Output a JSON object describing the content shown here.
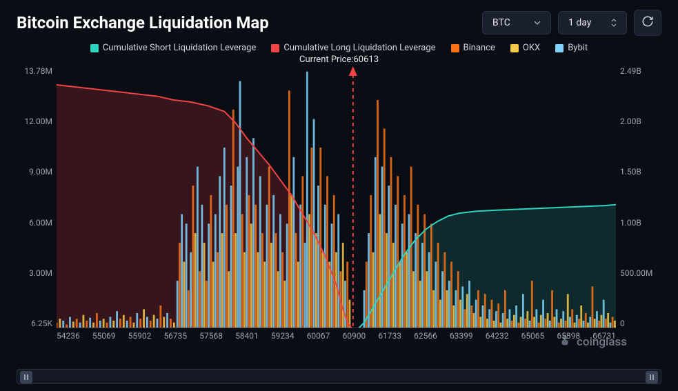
{
  "header": {
    "title": "Bitcoin Exchange Liquidation Map",
    "asset_selector": {
      "value": "BTC"
    },
    "range_selector": {
      "value": "1 day"
    }
  },
  "legend": {
    "items": [
      {
        "label": "Cumulative Short Liquidation Leverage",
        "color": "#2dd4bf"
      },
      {
        "label": "Cumulative Long Liquidation Leverage",
        "color": "#ef4444"
      },
      {
        "label": "Binance",
        "color": "#f97316"
      },
      {
        "label": "OKX",
        "color": "#f7c948"
      },
      {
        "label": "Bybit",
        "color": "#7dd3fc"
      }
    ]
  },
  "subtitle_prefix": "Current Price:",
  "current_price": "60613",
  "watermark": "coinglass",
  "chart": {
    "type": "combo-bar-line",
    "background_color": "#0a0d14",
    "grid_color": "#1f2533",
    "current_price_line_color": "#ef4444",
    "arrow_color": "#ef4444",
    "y_left": {
      "label_fontsize": 12,
      "ticks": [
        "13.78M",
        "12.00M",
        "9.00M",
        "6.00M",
        "3.00M",
        "6.25K"
      ]
    },
    "y_right": {
      "label_fontsize": 12,
      "ticks": [
        "2.49B",
        "2.00B",
        "1.50B",
        "1.00B",
        "500.00M",
        "0"
      ]
    },
    "x": {
      "label_fontsize": 12,
      "ticks": [
        "54236",
        "55069",
        "55902",
        "56735",
        "57568",
        "58401",
        "59234",
        "60067",
        "60900",
        "61733",
        "62566",
        "63399",
        "64232",
        "65065",
        "65898",
        "66731"
      ]
    },
    "long_line": {
      "color": "#ef4444",
      "fill": "#5b1d22",
      "fill_opacity": 0.55,
      "points": [
        [
          0,
          12.8
        ],
        [
          3,
          12.7
        ],
        [
          6,
          12.6
        ],
        [
          9,
          12.5
        ],
        [
          12,
          12.4
        ],
        [
          15,
          12.3
        ],
        [
          18,
          12.2
        ],
        [
          21,
          12.0
        ],
        [
          24,
          11.9
        ],
        [
          27,
          11.7
        ],
        [
          30,
          11.4
        ],
        [
          32,
          10.8
        ],
        [
          34,
          10.0
        ],
        [
          36,
          9.3
        ],
        [
          38,
          8.6
        ],
        [
          40,
          7.8
        ],
        [
          42,
          7.0
        ],
        [
          44,
          6.0
        ],
        [
          46,
          5.0
        ],
        [
          48,
          3.8
        ],
        [
          50,
          2.3
        ],
        [
          51,
          1.2
        ],
        [
          52,
          0.3
        ],
        [
          52.8,
          0
        ]
      ]
    },
    "short_line": {
      "color": "#2dd4bf",
      "fill": "#134e4a",
      "fill_opacity": 0.45,
      "points": [
        [
          54,
          0
        ],
        [
          55,
          0.3
        ],
        [
          56,
          0.8
        ],
        [
          58,
          1.8
        ],
        [
          60,
          2.8
        ],
        [
          62,
          3.8
        ],
        [
          64,
          4.6
        ],
        [
          66,
          5.2
        ],
        [
          68,
          5.6
        ],
        [
          70,
          5.9
        ],
        [
          72,
          6.05
        ],
        [
          75,
          6.15
        ],
        [
          78,
          6.2
        ],
        [
          82,
          6.25
        ],
        [
          86,
          6.3
        ],
        [
          90,
          6.35
        ],
        [
          94,
          6.4
        ],
        [
          98,
          6.45
        ],
        [
          100,
          6.5
        ]
      ]
    },
    "current_price_x": 53,
    "bars": [
      [
        0,
        0.3,
        "o"
      ],
      [
        0.6,
        0.5,
        "y"
      ],
      [
        1.2,
        0.4,
        "c"
      ],
      [
        1.8,
        0.2,
        "o"
      ],
      [
        2.4,
        0.6,
        "c"
      ],
      [
        3,
        0.35,
        "y"
      ],
      [
        3.6,
        0.5,
        "o"
      ],
      [
        4.2,
        0.3,
        "c"
      ],
      [
        4.8,
        0.7,
        "y"
      ],
      [
        5.4,
        0.4,
        "o"
      ],
      [
        6,
        0.55,
        "c"
      ],
      [
        6.6,
        0.3,
        "y"
      ],
      [
        7.2,
        0.8,
        "o"
      ],
      [
        7.8,
        0.4,
        "c"
      ],
      [
        8.4,
        0.5,
        "y"
      ],
      [
        9,
        0.3,
        "o"
      ],
      [
        9.6,
        0.6,
        "c"
      ],
      [
        10.2,
        0.4,
        "y"
      ],
      [
        10.8,
        0.9,
        "c"
      ],
      [
        11.4,
        0.5,
        "o"
      ],
      [
        12,
        0.7,
        "y"
      ],
      [
        12.6,
        0.4,
        "c"
      ],
      [
        13.2,
        0.6,
        "o"
      ],
      [
        13.8,
        0.3,
        "y"
      ],
      [
        14.4,
        0.8,
        "c"
      ],
      [
        15,
        0.5,
        "o"
      ],
      [
        15.6,
        1.0,
        "y"
      ],
      [
        16.2,
        0.6,
        "c"
      ],
      [
        16.8,
        0.4,
        "o"
      ],
      [
        17.4,
        0.7,
        "y"
      ],
      [
        18,
        0.5,
        "c"
      ],
      [
        18.6,
        1.2,
        "o"
      ],
      [
        19.2,
        0.6,
        "y"
      ],
      [
        19.8,
        0.8,
        "c"
      ],
      [
        20.4,
        0.5,
        "o"
      ],
      [
        21,
        0.3,
        "y"
      ],
      [
        21.6,
        2.5,
        "c"
      ],
      [
        22,
        4.5,
        "o"
      ],
      [
        22.4,
        6.0,
        "c"
      ],
      [
        22.8,
        3.5,
        "y"
      ],
      [
        23.2,
        5.5,
        "c"
      ],
      [
        23.6,
        2.0,
        "o"
      ],
      [
        24,
        4.0,
        "c"
      ],
      [
        24.4,
        7.5,
        "o"
      ],
      [
        24.8,
        5.0,
        "y"
      ],
      [
        25.2,
        8.5,
        "c"
      ],
      [
        25.6,
        3.0,
        "o"
      ],
      [
        26,
        6.5,
        "c"
      ],
      [
        26.4,
        4.5,
        "y"
      ],
      [
        26.8,
        2.5,
        "o"
      ],
      [
        27.2,
        5.5,
        "c"
      ],
      [
        27.6,
        7.0,
        "o"
      ],
      [
        28,
        3.5,
        "y"
      ],
      [
        28.4,
        6.0,
        "c"
      ],
      [
        28.8,
        4.0,
        "o"
      ],
      [
        29.2,
        8.0,
        "c"
      ],
      [
        29.6,
        5.0,
        "y"
      ],
      [
        30,
        9.5,
        "c"
      ],
      [
        30.4,
        6.5,
        "o"
      ],
      [
        30.8,
        3.0,
        "y"
      ],
      [
        31.2,
        7.5,
        "c"
      ],
      [
        31.6,
        11.5,
        "o"
      ],
      [
        32,
        5.0,
        "y"
      ],
      [
        32.4,
        8.5,
        "c"
      ],
      [
        32.8,
        13.0,
        "c"
      ],
      [
        33.2,
        6.0,
        "o"
      ],
      [
        33.6,
        4.0,
        "y"
      ],
      [
        34,
        9.0,
        "c"
      ],
      [
        34.4,
        7.0,
        "o"
      ],
      [
        34.8,
        5.5,
        "y"
      ],
      [
        35.2,
        10.0,
        "c"
      ],
      [
        35.6,
        6.5,
        "o"
      ],
      [
        36,
        4.0,
        "y"
      ],
      [
        36.4,
        8.0,
        "c"
      ],
      [
        36.8,
        5.0,
        "o"
      ],
      [
        37.2,
        3.5,
        "y"
      ],
      [
        37.6,
        6.5,
        "c"
      ],
      [
        38,
        8.5,
        "o"
      ],
      [
        38.4,
        4.5,
        "y"
      ],
      [
        38.8,
        7.0,
        "c"
      ],
      [
        39.2,
        5.0,
        "o"
      ],
      [
        39.6,
        3.0,
        "y"
      ],
      [
        40,
        6.0,
        "c"
      ],
      [
        40.4,
        4.0,
        "o"
      ],
      [
        40.8,
        2.5,
        "y"
      ],
      [
        41.2,
        5.5,
        "c"
      ],
      [
        41.6,
        12.5,
        "o"
      ],
      [
        42,
        7.0,
        "y"
      ],
      [
        42.4,
        9.0,
        "c"
      ],
      [
        42.8,
        5.0,
        "o"
      ],
      [
        43.2,
        3.5,
        "y"
      ],
      [
        43.6,
        6.5,
        "c"
      ],
      [
        44,
        8.0,
        "o"
      ],
      [
        44.4,
        4.5,
        "c"
      ],
      [
        44.8,
        13.5,
        "c"
      ],
      [
        45.2,
        6.0,
        "y"
      ],
      [
        45.6,
        9.5,
        "o"
      ],
      [
        46,
        11.0,
        "c"
      ],
      [
        46.4,
        5.0,
        "y"
      ],
      [
        46.8,
        7.5,
        "c"
      ],
      [
        47.2,
        9.5,
        "o"
      ],
      [
        47.6,
        4.0,
        "y"
      ],
      [
        48,
        6.5,
        "c"
      ],
      [
        48.4,
        8.0,
        "o"
      ],
      [
        48.8,
        3.5,
        "y"
      ],
      [
        49.2,
        5.5,
        "c"
      ],
      [
        49.6,
        7.0,
        "o"
      ],
      [
        50,
        4.0,
        "y"
      ],
      [
        50.4,
        6.0,
        "c"
      ],
      [
        50.8,
        3.0,
        "o"
      ],
      [
        51.2,
        4.5,
        "y"
      ],
      [
        51.6,
        2.5,
        "c"
      ],
      [
        52,
        3.5,
        "o"
      ],
      [
        52.4,
        1.5,
        "y"
      ],
      [
        55,
        2.0,
        "c"
      ],
      [
        55.4,
        3.5,
        "o"
      ],
      [
        55.8,
        5.0,
        "c"
      ],
      [
        56.2,
        7.0,
        "o"
      ],
      [
        56.6,
        4.0,
        "y"
      ],
      [
        57,
        9.0,
        "c"
      ],
      [
        57.4,
        12.0,
        "o"
      ],
      [
        57.8,
        6.0,
        "y"
      ],
      [
        58.2,
        8.5,
        "c"
      ],
      [
        58.6,
        10.5,
        "o"
      ],
      [
        59,
        5.0,
        "y"
      ],
      [
        59.4,
        7.5,
        "c"
      ],
      [
        59.8,
        9.0,
        "o"
      ],
      [
        60.2,
        4.5,
        "y"
      ],
      [
        60.6,
        6.5,
        "c"
      ],
      [
        61,
        8.0,
        "o"
      ],
      [
        61.4,
        3.5,
        "y"
      ],
      [
        61.8,
        5.5,
        "c"
      ],
      [
        62.2,
        7.0,
        "o"
      ],
      [
        62.6,
        4.0,
        "y"
      ],
      [
        63,
        6.0,
        "c"
      ],
      [
        63.4,
        8.5,
        "o"
      ],
      [
        63.8,
        3.0,
        "y"
      ],
      [
        64.2,
        5.0,
        "c"
      ],
      [
        64.6,
        6.5,
        "o"
      ],
      [
        65,
        2.5,
        "y"
      ],
      [
        65.4,
        4.5,
        "c"
      ],
      [
        65.8,
        6.0,
        "o"
      ],
      [
        66.2,
        3.0,
        "y"
      ],
      [
        66.6,
        4.0,
        "c"
      ],
      [
        67,
        5.5,
        "o"
      ],
      [
        67.4,
        2.0,
        "y"
      ],
      [
        67.8,
        3.5,
        "c"
      ],
      [
        68.2,
        4.5,
        "o"
      ],
      [
        68.6,
        1.5,
        "y"
      ],
      [
        69,
        3.0,
        "c"
      ],
      [
        69.4,
        4.0,
        "o"
      ],
      [
        69.8,
        2.0,
        "y"
      ],
      [
        70.2,
        2.5,
        "c"
      ],
      [
        70.6,
        3.5,
        "o"
      ],
      [
        71,
        1.2,
        "y"
      ],
      [
        71.4,
        2.0,
        "c"
      ],
      [
        71.8,
        3.0,
        "o"
      ],
      [
        72.2,
        1.5,
        "y"
      ],
      [
        72.6,
        2.2,
        "c"
      ],
      [
        73,
        1.0,
        "o"
      ],
      [
        73.4,
        1.8,
        "y"
      ],
      [
        73.8,
        2.5,
        "c"
      ],
      [
        74.2,
        1.2,
        "o"
      ],
      [
        74.6,
        0.8,
        "y"
      ],
      [
        75,
        1.5,
        "c"
      ],
      [
        75.4,
        2.0,
        "o"
      ],
      [
        75.8,
        0.6,
        "y"
      ],
      [
        76.2,
        1.2,
        "c"
      ],
      [
        76.6,
        1.8,
        "o"
      ],
      [
        77,
        0.5,
        "y"
      ],
      [
        77.4,
        1.0,
        "c"
      ],
      [
        77.8,
        1.5,
        "o"
      ],
      [
        78.2,
        0.4,
        "y"
      ],
      [
        78.6,
        0.9,
        "c"
      ],
      [
        79,
        1.3,
        "o"
      ],
      [
        79.4,
        0.3,
        "y"
      ],
      [
        79.8,
        0.8,
        "c"
      ],
      [
        80.2,
        2.0,
        "o"
      ],
      [
        80.6,
        0.5,
        "y"
      ],
      [
        81,
        1.0,
        "c"
      ],
      [
        81.4,
        0.4,
        "o"
      ],
      [
        81.8,
        0.7,
        "y"
      ],
      [
        82.2,
        1.2,
        "c"
      ],
      [
        82.6,
        0.3,
        "o"
      ],
      [
        83,
        0.6,
        "y"
      ],
      [
        83.4,
        1.8,
        "c"
      ],
      [
        83.8,
        0.5,
        "o"
      ],
      [
        84.2,
        0.9,
        "y"
      ],
      [
        84.6,
        0.4,
        "c"
      ],
      [
        85,
        2.5,
        "o"
      ],
      [
        85.4,
        0.6,
        "y"
      ],
      [
        85.8,
        1.0,
        "c"
      ],
      [
        86.2,
        0.3,
        "o"
      ],
      [
        86.6,
        0.7,
        "y"
      ],
      [
        87,
        1.5,
        "c"
      ],
      [
        87.4,
        0.5,
        "o"
      ],
      [
        87.8,
        0.8,
        "y"
      ],
      [
        88.2,
        0.4,
        "c"
      ],
      [
        88.6,
        2.0,
        "o"
      ],
      [
        89,
        0.6,
        "y"
      ],
      [
        89.4,
        1.0,
        "c"
      ],
      [
        89.8,
        0.3,
        "o"
      ],
      [
        90.2,
        0.5,
        "y"
      ],
      [
        90.6,
        0.9,
        "c"
      ],
      [
        91,
        0.4,
        "o"
      ],
      [
        91.4,
        1.8,
        "y"
      ],
      [
        91.8,
        0.6,
        "c"
      ],
      [
        92.2,
        1.0,
        "o"
      ],
      [
        92.6,
        0.3,
        "y"
      ],
      [
        93,
        0.7,
        "c"
      ],
      [
        93.4,
        0.5,
        "o"
      ],
      [
        93.8,
        1.2,
        "y"
      ],
      [
        94.2,
        0.4,
        "c"
      ],
      [
        94.6,
        0.8,
        "o"
      ],
      [
        95,
        0.3,
        "y"
      ],
      [
        95.4,
        0.6,
        "c"
      ],
      [
        95.8,
        2.2,
        "o"
      ],
      [
        96.2,
        0.5,
        "y"
      ],
      [
        96.6,
        0.9,
        "c"
      ],
      [
        97,
        0.4,
        "o"
      ],
      [
        97.4,
        0.7,
        "y"
      ],
      [
        97.8,
        1.5,
        "c"
      ],
      [
        98.2,
        0.5,
        "o"
      ],
      [
        98.6,
        0.8,
        "y"
      ],
      [
        99,
        0.3,
        "c"
      ],
      [
        99.4,
        0.6,
        "o"
      ],
      [
        99.8,
        0.4,
        "y"
      ]
    ],
    "bar_palette": {
      "o": "#f97316",
      "y": "#f7c948",
      "c": "#7dd3fc"
    },
    "bar_width": 0.35,
    "y_max": 13.78
  }
}
